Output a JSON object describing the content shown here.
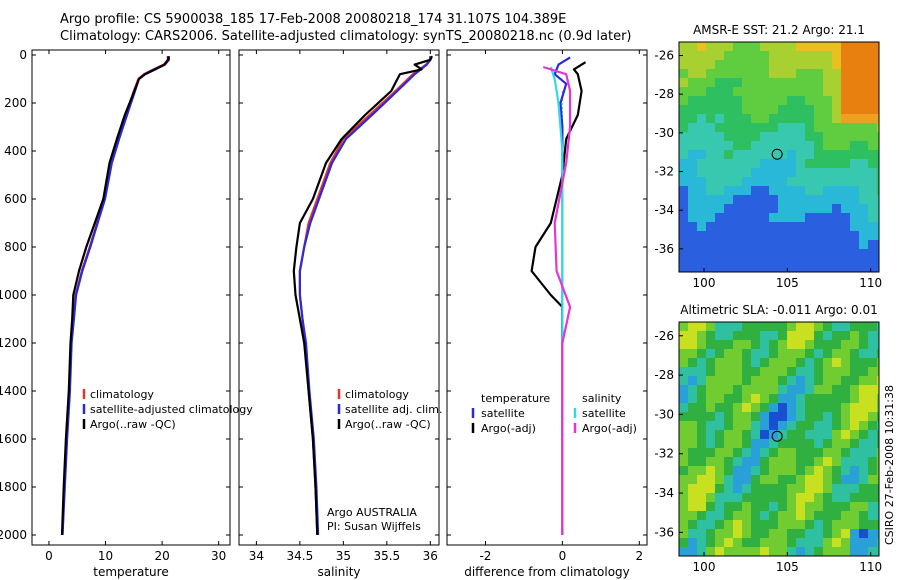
{
  "header": {
    "line1": "Argo profile: CS 5900038_185 17-Feb-2008 20080218_174 31.107S 104.389E",
    "line2": "Climatology: CARS2006. Satellite-adjusted climatology: synTS_20080218.nc (0.9d later)"
  },
  "side_label": "CSIRO 27-Feb-2008 10:31:38",
  "chart_data": [
    {
      "type": "line",
      "xlabel": "temperature",
      "ylabel": "",
      "xlim": [
        -3,
        32
      ],
      "ylim": [
        2050,
        0
      ],
      "xticks": [
        0,
        10,
        20,
        30
      ],
      "yticks": [
        0,
        200,
        400,
        600,
        800,
        1000,
        1200,
        1400,
        1600,
        1800,
        2000
      ],
      "legend": [
        "climatology",
        "satellite-adjusted climatology",
        "Argo(..raw -QC)"
      ],
      "series": [
        {
          "name": "climatology",
          "color": "#e8332a",
          "points": [
            [
              21.0,
              5
            ],
            [
              21.0,
              20
            ],
            [
              20.3,
              40
            ],
            [
              18.5,
              60
            ],
            [
              16.8,
              80
            ],
            [
              15.8,
              100
            ],
            [
              15.0,
              150
            ],
            [
              13.6,
              250
            ],
            [
              12.2,
              350
            ],
            [
              11.0,
              450
            ],
            [
              9.8,
              600
            ],
            [
              8.5,
              700
            ],
            [
              7.2,
              800
            ],
            [
              5.8,
              900
            ],
            [
              4.7,
              1000
            ],
            [
              4.3,
              1100
            ],
            [
              3.9,
              1200
            ],
            [
              3.6,
              1400
            ],
            [
              3.1,
              1600
            ],
            [
              2.7,
              1800
            ],
            [
              2.4,
              2000
            ]
          ]
        },
        {
          "name": "satellite-adjusted climatology",
          "color": "#2a2ad8",
          "points": [
            [
              21.2,
              5
            ],
            [
              21.2,
              20
            ],
            [
              20.5,
              40
            ],
            [
              18.6,
              60
            ],
            [
              16.9,
              80
            ],
            [
              15.9,
              100
            ],
            [
              15.2,
              150
            ],
            [
              13.8,
              250
            ],
            [
              12.4,
              350
            ],
            [
              11.1,
              450
            ],
            [
              9.9,
              600
            ],
            [
              8.6,
              700
            ],
            [
              7.3,
              800
            ],
            [
              5.9,
              900
            ],
            [
              4.8,
              1000
            ],
            [
              4.4,
              1100
            ],
            [
              4.0,
              1200
            ],
            [
              3.7,
              1400
            ],
            [
              3.2,
              1600
            ],
            [
              2.8,
              1800
            ],
            [
              2.4,
              2000
            ]
          ]
        },
        {
          "name": "Argo(..raw -QC)",
          "color": "#000000",
          "points": [
            [
              21.1,
              5
            ],
            [
              21.1,
              20
            ],
            [
              20.4,
              40
            ],
            [
              18.8,
              60
            ],
            [
              17.0,
              80
            ],
            [
              15.9,
              100
            ],
            [
              15.1,
              150
            ],
            [
              13.4,
              250
            ],
            [
              12.0,
              350
            ],
            [
              10.7,
              450
            ],
            [
              9.6,
              600
            ],
            [
              8.1,
              700
            ],
            [
              6.6,
              800
            ],
            [
              5.3,
              900
            ],
            [
              4.3,
              1000
            ],
            [
              4.1,
              1100
            ],
            [
              3.8,
              1200
            ],
            [
              3.5,
              1400
            ],
            [
              3.0,
              1600
            ],
            [
              2.6,
              1800
            ],
            [
              2.3,
              2000
            ]
          ]
        }
      ]
    },
    {
      "type": "line",
      "xlabel": "salinity",
      "ylabel": "",
      "xlim": [
        33.8,
        36.1
      ],
      "ylim": [
        2050,
        0
      ],
      "xticks": [
        34,
        34.5,
        35,
        35.5,
        36
      ],
      "yticks": [
        0,
        200,
        400,
        600,
        800,
        1000,
        1200,
        1400,
        1600,
        1800,
        2000
      ],
      "legend": [
        "climatology",
        "satellite adj. clim.",
        "Argo(..raw -QC)"
      ],
      "annotation": [
        "Argo AUSTRALIA",
        "PI: Susan Wijffels"
      ],
      "series": [
        {
          "name": "climatology",
          "color": "#e8332a",
          "points": [
            [
              36.0,
              5
            ],
            [
              36.0,
              20
            ],
            [
              35.95,
              40
            ],
            [
              35.8,
              80
            ],
            [
              35.6,
              150
            ],
            [
              35.3,
              250
            ],
            [
              35.0,
              350
            ],
            [
              34.85,
              450
            ],
            [
              34.7,
              600
            ],
            [
              34.6,
              700
            ],
            [
              34.55,
              800
            ],
            [
              34.5,
              900
            ],
            [
              34.5,
              1000
            ],
            [
              34.53,
              1100
            ],
            [
              34.56,
              1200
            ],
            [
              34.6,
              1400
            ],
            [
              34.65,
              1600
            ],
            [
              34.68,
              1800
            ],
            [
              34.7,
              2000
            ]
          ]
        },
        {
          "name": "satellite adj. clim.",
          "color": "#2a2ad8",
          "points": [
            [
              36.0,
              5
            ],
            [
              36.0,
              20
            ],
            [
              35.96,
              40
            ],
            [
              35.82,
              80
            ],
            [
              35.62,
              150
            ],
            [
              35.33,
              250
            ],
            [
              35.03,
              350
            ],
            [
              34.87,
              450
            ],
            [
              34.72,
              600
            ],
            [
              34.62,
              700
            ],
            [
              34.55,
              800
            ],
            [
              34.5,
              900
            ],
            [
              34.5,
              1000
            ],
            [
              34.53,
              1100
            ],
            [
              34.57,
              1200
            ],
            [
              34.61,
              1400
            ],
            [
              34.66,
              1600
            ],
            [
              34.69,
              1800
            ],
            [
              34.71,
              2000
            ]
          ]
        },
        {
          "name": "Argo(..raw -QC)",
          "color": "#000000",
          "points": [
            [
              36.02,
              5
            ],
            [
              36.0,
              20
            ],
            [
              35.82,
              40
            ],
            [
              35.9,
              60
            ],
            [
              35.65,
              80
            ],
            [
              35.55,
              150
            ],
            [
              35.25,
              250
            ],
            [
              34.98,
              350
            ],
            [
              34.8,
              450
            ],
            [
              34.65,
              600
            ],
            [
              34.5,
              700
            ],
            [
              34.46,
              800
            ],
            [
              34.43,
              900
            ],
            [
              34.45,
              1000
            ],
            [
              34.5,
              1100
            ],
            [
              34.55,
              1200
            ],
            [
              34.6,
              1400
            ],
            [
              34.65,
              1600
            ],
            [
              34.68,
              1800
            ],
            [
              34.7,
              2000
            ]
          ]
        }
      ]
    },
    {
      "type": "line",
      "xlabel": "difference from climatology",
      "ylabel": "",
      "xlim": [
        -3,
        2.2
      ],
      "ylim": [
        2050,
        0
      ],
      "xticks": [
        -2,
        0,
        2
      ],
      "yticks": [
        0,
        200,
        400,
        600,
        800,
        1000,
        1200,
        1400,
        1600,
        1800,
        2000
      ],
      "legend_temperature_heading": "temperature",
      "legend_salinity_heading": "salinity",
      "legend_temperature": [
        "satellite",
        "Argo(-adj)"
      ],
      "legend_salinity": [
        "satellite",
        "Argo(-adj)"
      ],
      "series": [
        {
          "name": "satellite",
          "group": "temperature",
          "color": "#2a2ad8",
          "points": [
            [
              0.2,
              10
            ],
            [
              -0.1,
              40
            ],
            [
              -0.2,
              80
            ],
            [
              0.1,
              120
            ],
            [
              -0.05,
              200
            ],
            [
              0.0,
              300
            ],
            [
              0.0,
              400
            ],
            [
              0.0,
              600
            ],
            [
              0.0,
              800
            ],
            [
              0.0,
              1000
            ],
            [
              0.0,
              1200
            ],
            [
              0.0,
              1600
            ],
            [
              0.0,
              2000
            ]
          ]
        },
        {
          "name": "Argo(-adj)",
          "group": "temperature",
          "color": "#000000",
          "points": [
            [
              0.6,
              30
            ],
            [
              0.3,
              60
            ],
            [
              0.4,
              80
            ],
            [
              0.5,
              150
            ],
            [
              0.4,
              250
            ],
            [
              0.1,
              350
            ],
            [
              0.0,
              500
            ],
            [
              -0.3,
              700
            ],
            [
              -0.7,
              800
            ],
            [
              -0.8,
              900
            ],
            [
              -0.3,
              1000
            ],
            [
              0.0,
              1050
            ],
            [
              0.0,
              1200
            ],
            [
              0.0,
              2000
            ]
          ]
        },
        {
          "name": "satellite",
          "group": "salinity",
          "color": "#33d8e8",
          "points": [
            [
              -0.3,
              50
            ],
            [
              -0.2,
              100
            ],
            [
              -0.1,
              200
            ],
            [
              0.0,
              400
            ],
            [
              0.0,
              800
            ],
            [
              0.0,
              1200
            ],
            [
              0.0,
              2000
            ]
          ]
        },
        {
          "name": "Argo(-adj)",
          "group": "salinity",
          "color": "#e833d8",
          "points": [
            [
              -0.5,
              50
            ],
            [
              0.1,
              80
            ],
            [
              0.2,
              150
            ],
            [
              0.2,
              300
            ],
            [
              0.1,
              450
            ],
            [
              -0.2,
              700
            ],
            [
              -0.15,
              900
            ],
            [
              0.2,
              1050
            ],
            [
              0.0,
              1200
            ],
            [
              0.0,
              2000
            ]
          ]
        }
      ]
    },
    {
      "type": "heatmap",
      "title": "AMSR-E SST: 21.2 Argo: 21.1",
      "xlim": [
        98.5,
        110.5
      ],
      "ylim": [
        -37.2,
        -25.3
      ],
      "xticks": [
        100,
        105,
        110
      ],
      "yticks": [
        -26,
        -28,
        -30,
        -32,
        -34,
        -36
      ],
      "marker": {
        "x": 104.389,
        "y": -31.107
      },
      "colors": [
        "#2a60e0",
        "#2ab8d8",
        "#38c8b0",
        "#2ec060",
        "#60cc40",
        "#a8d030",
        "#e8c020",
        "#f0a020",
        "#e88010"
      ]
    },
    {
      "type": "heatmap",
      "title": "Altimetric SLA: -0.011 Argo: 0.01",
      "xlim": [
        98.5,
        110.5
      ],
      "ylim": [
        -37.2,
        -25.3
      ],
      "xticks": [
        100,
        105,
        110
      ],
      "yticks": [
        -26,
        -28,
        -30,
        -32,
        -34,
        -36
      ],
      "marker": {
        "x": 104.389,
        "y": -31.107
      },
      "colors": [
        "#1a50d0",
        "#2aa0d8",
        "#2ec0a0",
        "#30b040",
        "#70cc30",
        "#c8e020",
        "#f0e020"
      ]
    }
  ]
}
